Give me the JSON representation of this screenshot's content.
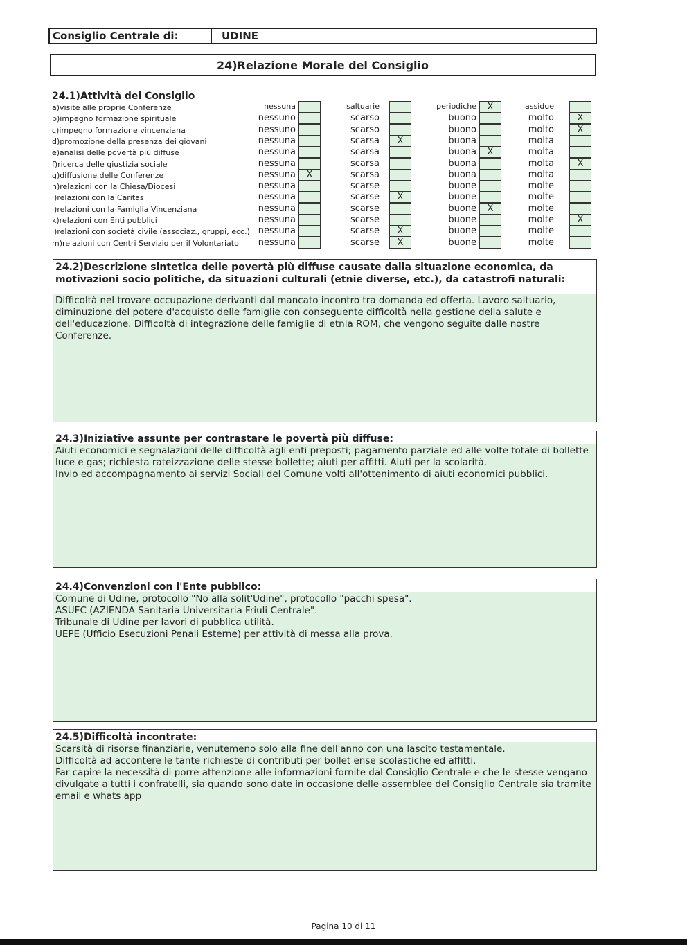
{
  "header": {
    "label": "Consiglio Centrale di:",
    "value": "UDINE"
  },
  "title": "24)Relazione Morale del Consiglio",
  "section_24_1": {
    "heading": "24.1)Attività del Consiglio",
    "rows": [
      {
        "label": "a)visite alle proprie Conferenze",
        "options": [
          "nessuna",
          "saltuarie",
          "periodiche",
          "assidue"
        ],
        "checked": 3
      },
      {
        "label": "b)impegno formazione spirituale",
        "options": [
          "nessuno",
          "scarso",
          "buono",
          "molto"
        ],
        "checked": 4
      },
      {
        "label": "c)impegno formazione vincenziana",
        "options": [
          "nessuno",
          "scarso",
          "buono",
          "molto"
        ],
        "checked": 4
      },
      {
        "label": "d)promozione della presenza dei giovani",
        "options": [
          "nessuna",
          "scarsa",
          "buona",
          "molta"
        ],
        "checked": 2
      },
      {
        "label": "e)analisi delle povertà più diffuse",
        "options": [
          "nessuna",
          "scarsa",
          "buona",
          "molta"
        ],
        "checked": 3
      },
      {
        "label": "f)ricerca delle giustizia sociale",
        "options": [
          "nessuna",
          "scarsa",
          "buona",
          "molta"
        ],
        "checked": 4
      },
      {
        "label": "g)diffusione delle Conferenze",
        "options": [
          "nessuna",
          "scarsa",
          "buona",
          "molta"
        ],
        "checked": 1
      },
      {
        "label": "h)relazioni con la Chiesa/Diocesi",
        "options": [
          "nessuna",
          "scarse",
          "buone",
          "molte"
        ],
        "checked": 0
      },
      {
        "label": "i)relazioni con la Caritas",
        "options": [
          "nessuna",
          "scarse",
          "buone",
          "molte"
        ],
        "checked": 2
      },
      {
        "label": "j)relazioni con la Famiglia Vincenziana",
        "options": [
          "nessuna",
          "scarse",
          "buone",
          "molte"
        ],
        "checked": 3
      },
      {
        "label": "k)relazioni con Enti pubblici",
        "options": [
          "nessuna",
          "scarse",
          "buone",
          "molte"
        ],
        "checked": 4
      },
      {
        "label": "l)relazioni con società civile (associaz., gruppi, ecc.)",
        "options": [
          "nessuna",
          "scarse",
          "buone",
          "molte"
        ],
        "checked": 2
      },
      {
        "label": "m)relazioni con Centri Servizio per il Volontariato",
        "options": [
          "nessuna",
          "scarse",
          "buone",
          "molte"
        ],
        "checked": 2
      }
    ],
    "mark": "X"
  },
  "panels": [
    {
      "heading": "24.2)Descrizione sintetica delle povertà più diffuse causate dalla situazione economica, da motivazioni socio politiche, da situazioni culturali (etnie diverse, etc.), da catastrofi naturali:",
      "lines": [
        "Difficoltà nel trovare occupazione derivanti dal mancato incontro tra domanda ed offerta. Lavoro saltuario, diminuzione del potere d'acquisto delle famiglie con conseguente difficoltà nella gestione della salute e dell'educazione. Difficoltà di integrazione delle famiglie di etnia ROM, che vengono seguite dalle nostre Conferenze."
      ]
    },
    {
      "heading": "24.3)Iniziative assunte per contrastare le povertà più diffuse:",
      "lines": [
        "Aiuti economici e segnalazioni delle difficoltà agli enti preposti; pagamento parziale ed alle volte totale di bollette luce e gas; richiesta rateizzazione delle stesse bollette; aiuti per affitti. Aiuti per la scolarità.",
        "Invio ed accompagnamento ai servizi Sociali del Comune volti all'ottenimento di aiuti economici pubblici."
      ]
    },
    {
      "heading": "24.4)Convenzioni con l'Ente pubblico:",
      "lines": [
        "Comune di Udine, protocollo \"No alla solit'Udine\", protocollo \"pacchi spesa\".",
        "ASUFC (AZIENDA Sanitaria Universitaria Friuli Centrale\".",
        "Tribunale di Udine per lavori di pubblica utilità.",
        "UEPE (Ufficio Esecuzioni Penali Esterne) per attività di messa alla prova."
      ]
    },
    {
      "heading": "24.5)Difficoltà incontrate:",
      "lines": [
        "Scarsità di risorse finanziarie, venutemeno solo alla fine dell'anno con una lascito testamentale.",
        "Difficoltà ad accontere le tante richieste di contributi per bollet ense scolastiche ed affitti.",
        "Far capire la necessità di porre attenzione alle informazioni fornite dal Consiglio Centrale e che le stesse vengano divulgate a tutti i confratelli, sia quando sono date in occasione delle assemblee del Consiglio Centrale sia tramite email e whats app"
      ]
    }
  ],
  "footer": "Pagina 10 di 11",
  "colors": {
    "field_fill": "#dff2e1",
    "border": "#333333"
  }
}
